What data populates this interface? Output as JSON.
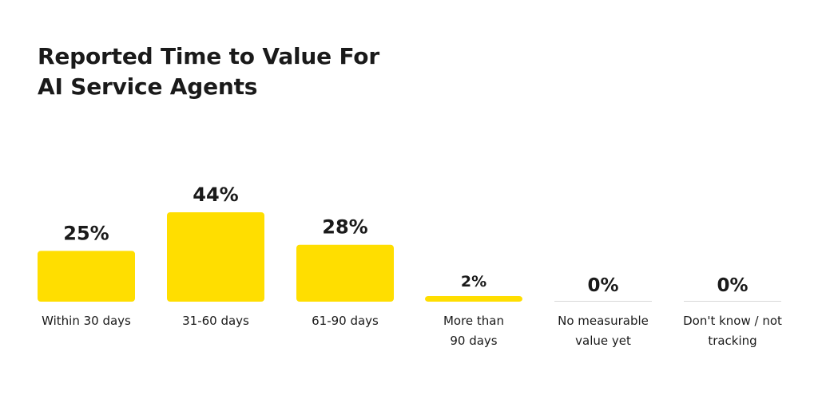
{
  "chart_data": {
    "type": "bar",
    "title": [
      "Reported Time to Value For",
      "AI Service Agents"
    ],
    "categories": [
      [
        "Within 30 days"
      ],
      [
        "31-60 days"
      ],
      [
        "61-90 days"
      ],
      [
        "More than",
        "90 days"
      ],
      [
        "No measurable",
        "value yet"
      ],
      [
        "Don't know / not",
        "tracking"
      ]
    ],
    "values": [
      25,
      44,
      28,
      2,
      0,
      0
    ],
    "value_labels": [
      "25%",
      "44%",
      "28%",
      "2%",
      "0%",
      "0%"
    ],
    "ylim": [
      0,
      44
    ],
    "xlabel": "",
    "ylabel": "",
    "grid": false,
    "legend": "none",
    "bar_color": "#FFDE00",
    "zero_line_color": "#D9D9D9"
  }
}
